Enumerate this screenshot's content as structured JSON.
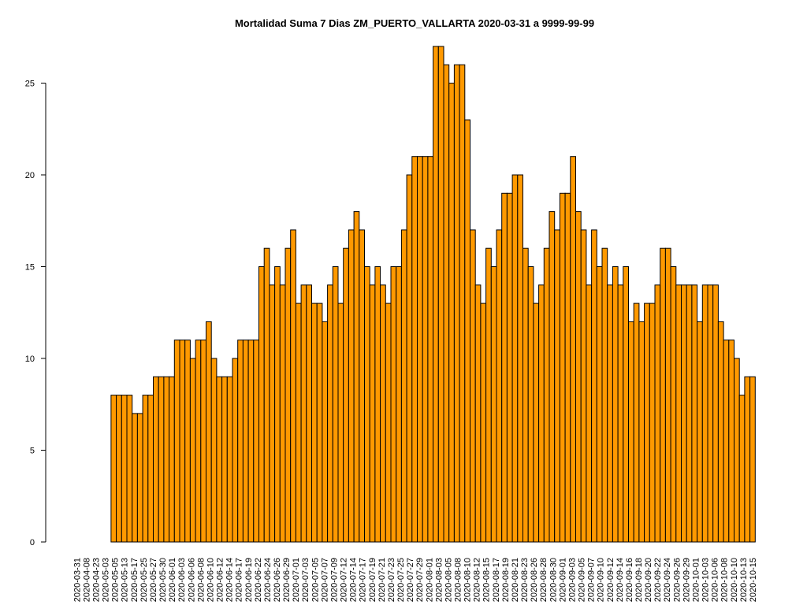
{
  "chart_data": {
    "type": "bar",
    "title": "Mortalidad Suma 7 Dias ZM_PUERTO_VALLARTA 2020-03-31 a 9999-99-99",
    "xlabel": "",
    "ylabel": "",
    "ylim": [
      0,
      27
    ],
    "yticks": [
      0,
      5,
      10,
      15,
      20,
      25
    ],
    "bar_color": "#FF9900",
    "bar_border": "#000000",
    "grid": false,
    "x_tick_labels": [
      "2020-03-31",
      "2020-04-08",
      "2020-04-23",
      "2020-05-03",
      "2020-05-05",
      "2020-05-13",
      "2020-05-17",
      "2020-05-25",
      "2020-05-27",
      "2020-05-30",
      "2020-06-01",
      "2020-06-03",
      "2020-06-06",
      "2020-06-08",
      "2020-06-10",
      "2020-06-12",
      "2020-06-14",
      "2020-06-17",
      "2020-06-19",
      "2020-06-22",
      "2020-06-24",
      "2020-06-26",
      "2020-06-29",
      "2020-07-01",
      "2020-07-03",
      "2020-07-05",
      "2020-07-07",
      "2020-07-09",
      "2020-07-12",
      "2020-07-14",
      "2020-07-17",
      "2020-07-19",
      "2020-07-21",
      "2020-07-23",
      "2020-07-25",
      "2020-07-27",
      "2020-07-29",
      "2020-08-01",
      "2020-08-03",
      "2020-08-05",
      "2020-08-08",
      "2020-08-10",
      "2020-08-12",
      "2020-08-15",
      "2020-08-17",
      "2020-08-19",
      "2020-08-21",
      "2020-08-23",
      "2020-08-26",
      "2020-08-28",
      "2020-08-30",
      "2020-09-01",
      "2020-09-03",
      "2020-09-05",
      "2020-09-07",
      "2020-09-10",
      "2020-09-12",
      "2020-09-14",
      "2020-09-16",
      "2020-09-18",
      "2020-09-20",
      "2020-09-22",
      "2020-09-24",
      "2020-09-26",
      "2020-09-29",
      "2020-10-01",
      "2020-10-03",
      "2020-10-06",
      "2020-10-08",
      "2020-10-10",
      "2020-10-13",
      "2020-10-15"
    ],
    "values": [
      0,
      0,
      0,
      0,
      0,
      0,
      0,
      8,
      8,
      8,
      8,
      7,
      7,
      8,
      8,
      9,
      9,
      9,
      9,
      11,
      11,
      11,
      10,
      11,
      11,
      12,
      10,
      9,
      9,
      9,
      10,
      11,
      11,
      11,
      11,
      15,
      16,
      14,
      15,
      14,
      16,
      17,
      13,
      14,
      14,
      13,
      13,
      12,
      14,
      15,
      13,
      16,
      17,
      18,
      17,
      15,
      14,
      15,
      14,
      13,
      15,
      15,
      17,
      20,
      21,
      21,
      21,
      21,
      27,
      27,
      26,
      25,
      26,
      26,
      23,
      17,
      14,
      13,
      16,
      15,
      17,
      19,
      19,
      20,
      20,
      16,
      15,
      13,
      14,
      16,
      18,
      17,
      19,
      19,
      21,
      18,
      17,
      14,
      17,
      15,
      16,
      14,
      15,
      14,
      15,
      12,
      13,
      12,
      13,
      13,
      14,
      16,
      16,
      15,
      14,
      14,
      14,
      14,
      12,
      14,
      14,
      14,
      12,
      11,
      11,
      10,
      8,
      9,
      9
    ]
  }
}
